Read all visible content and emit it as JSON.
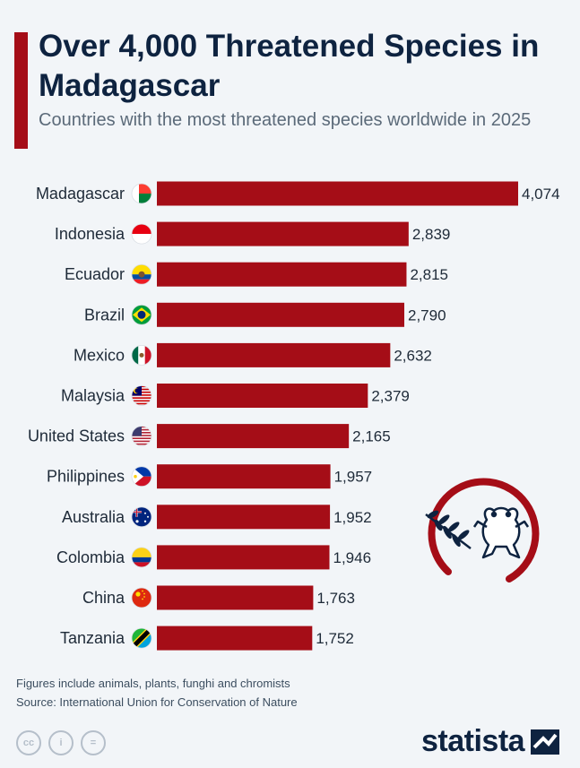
{
  "header": {
    "title": "Over 4,000 Threatened Species in Madagascar",
    "subtitle": "Countries with the most threatened species worldwide in 2025"
  },
  "colors": {
    "accent": "#a50d17",
    "bar": "#a50d17",
    "title": "#0e2340",
    "background": "#f2f5f8"
  },
  "chart_data": {
    "type": "bar",
    "orientation": "horizontal",
    "title": "Over 4,000 Threatened Species in Madagascar",
    "subtitle": "Countries with the most threatened species worldwide in 2025",
    "categories": [
      "Madagascar",
      "Indonesia",
      "Ecuador",
      "Brazil",
      "Mexico",
      "Malaysia",
      "United States",
      "Philippines",
      "Australia",
      "Colombia",
      "China",
      "Tanzania"
    ],
    "values": [
      4074,
      2839,
      2815,
      2790,
      2632,
      2379,
      2165,
      1957,
      1952,
      1946,
      1763,
      1752
    ],
    "value_labels": [
      "4,074",
      "2,839",
      "2,815",
      "2,790",
      "2,632",
      "2,379",
      "2,165",
      "1,957",
      "1,952",
      "1,946",
      "1,763",
      "1,752"
    ],
    "flags": [
      "madagascar-flag-icon",
      "indonesia-flag-icon",
      "ecuador-flag-icon",
      "brazil-flag-icon",
      "mexico-flag-icon",
      "malaysia-flag-icon",
      "united-states-flag-icon",
      "philippines-flag-icon",
      "australia-flag-icon",
      "colombia-flag-icon",
      "china-flag-icon",
      "tanzania-flag-icon"
    ],
    "xlim": [
      0,
      4074
    ],
    "grid": false,
    "xlabel": "",
    "ylabel": ""
  },
  "footer": {
    "note": "Figures include animals, plants, funghi and chromists",
    "source": "Source: International Union for Conservation of Nature",
    "license_icons": [
      "cc-icon",
      "attribution-icon",
      "no-derivatives-icon"
    ],
    "license_glyphs": [
      "cc",
      "i",
      "="
    ],
    "brand": "statista",
    "brand_icon": "statista-logo-icon"
  },
  "illustration": {
    "icons": [
      "leaf-branch-icon",
      "frog-icon",
      "ring-arc-icon"
    ]
  }
}
